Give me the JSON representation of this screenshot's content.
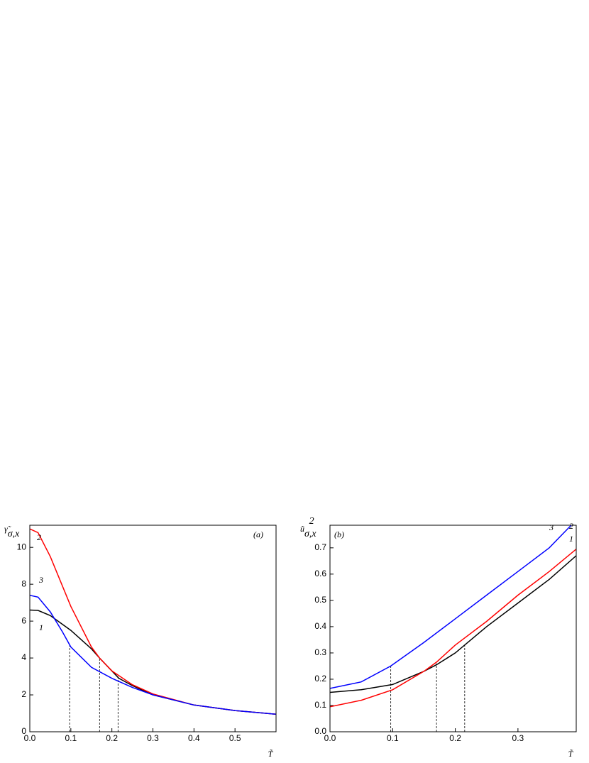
{
  "chart_data": [
    {
      "type": "line",
      "ylabel": {
        "base": "γ̃",
        "sub": "σ,x"
      },
      "xlabel": "T̃",
      "annotation": "(a)",
      "xlim": [
        0,
        0.6
      ],
      "ylim": [
        0,
        11.2
      ],
      "xticks": [
        {
          "value": 0,
          "label": "0.0"
        },
        0.1,
        0.2,
        0.3,
        0.4,
        0.5
      ],
      "yticks": [
        0,
        2,
        4,
        6,
        8,
        10
      ],
      "series": [
        {
          "name": "1",
          "color": "#000000",
          "x": [
            0,
            0.02,
            0.05,
            0.1,
            0.15,
            0.17,
            0.2,
            0.217,
            0.25,
            0.3,
            0.4,
            0.5,
            0.6
          ],
          "values": [
            6.6,
            6.58,
            6.3,
            5.5,
            4.5,
            4.0,
            3.3,
            2.9,
            2.5,
            2.0,
            1.45,
            1.15,
            0.95
          ]
        },
        {
          "name": "2",
          "color": "#ff0000",
          "x": [
            0,
            0.02,
            0.05,
            0.1,
            0.15,
            0.17,
            0.2,
            0.25,
            0.3,
            0.4,
            0.5,
            0.6
          ],
          "values": [
            11.0,
            10.8,
            9.5,
            6.8,
            4.6,
            4.0,
            3.3,
            2.55,
            2.05,
            1.45,
            1.15,
            0.95
          ]
        },
        {
          "name": "3",
          "color": "#0000ff",
          "x": [
            0,
            0.02,
            0.05,
            0.08,
            0.1,
            0.15,
            0.2,
            0.25,
            0.3,
            0.4,
            0.5,
            0.6
          ],
          "values": [
            7.4,
            7.3,
            6.5,
            5.4,
            4.6,
            3.5,
            2.9,
            2.4,
            2.0,
            1.45,
            1.15,
            0.95
          ]
        }
      ],
      "dashed": [
        {
          "x": 0.097,
          "y": 4.7
        },
        {
          "x": 0.17,
          "y": 4.0
        },
        {
          "x": 0.215,
          "y": 2.95
        }
      ]
    },
    {
      "type": "line",
      "ylabel": {
        "base": "ũ",
        "sub": "σ,x",
        "sup": "2"
      },
      "xlabel": "T̃",
      "annotation": "(b)",
      "xlim": [
        0,
        0.393
      ],
      "ylim": [
        0,
        0.786
      ],
      "xticks": [
        {
          "value": 0,
          "label": "0.0"
        },
        0.1,
        0.2,
        0.3
      ],
      "yticks": [
        {
          "value": 0,
          "label": "0.0"
        },
        0.1,
        0.2,
        0.3,
        0.4,
        0.5,
        0.6,
        0.7
      ],
      "series": [
        {
          "name": "1",
          "color": "#000000",
          "x": [
            0,
            0.05,
            0.1,
            0.15,
            0.17,
            0.2,
            0.215,
            0.25,
            0.3,
            0.35,
            0.393
          ],
          "values": [
            0.15,
            0.16,
            0.18,
            0.23,
            0.255,
            0.3,
            0.33,
            0.4,
            0.49,
            0.58,
            0.67
          ]
        },
        {
          "name": "2",
          "color": "#ff0000",
          "x": [
            0,
            0.05,
            0.1,
            0.15,
            0.17,
            0.2,
            0.25,
            0.3,
            0.35,
            0.393
          ],
          "values": [
            0.095,
            0.12,
            0.16,
            0.23,
            0.265,
            0.33,
            0.42,
            0.52,
            0.61,
            0.695
          ]
        },
        {
          "name": "3",
          "color": "#0000ff",
          "x": [
            0,
            0.05,
            0.097,
            0.15,
            0.2,
            0.25,
            0.3,
            0.35,
            0.385
          ],
          "values": [
            0.165,
            0.19,
            0.25,
            0.34,
            0.43,
            0.52,
            0.61,
            0.7,
            0.786
          ]
        }
      ],
      "dashed": [
        {
          "x": 0.097,
          "y": 0.25
        },
        {
          "x": 0.17,
          "y": 0.26
        },
        {
          "x": 0.215,
          "y": 0.33
        }
      ]
    }
  ]
}
